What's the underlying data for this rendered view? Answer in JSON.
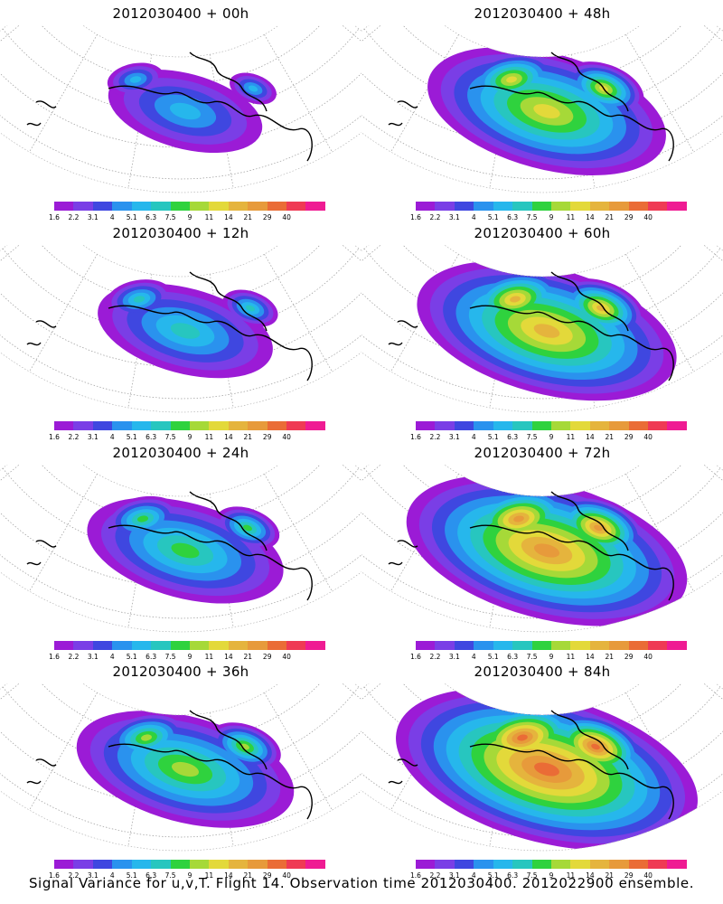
{
  "colorbar": {
    "labels": [
      "1.6",
      "2.2",
      "3.1",
      "4",
      "5.1",
      "6.3",
      "7.5",
      "9",
      "11",
      "14",
      "21",
      "29",
      "40"
    ],
    "colors": [
      "#9b1bd6",
      "#7a3ee6",
      "#3f47e0",
      "#2a92ee",
      "#26b7ec",
      "#27c6bf",
      "#2fd23e",
      "#a6d938",
      "#e3d93a",
      "#e5b43d",
      "#e79a3b",
      "#ea6c36",
      "#ef3a54",
      "#ef1b93"
    ]
  },
  "panels": [
    {
      "title": "2012030400 + 00h",
      "level": 0
    },
    {
      "title": "2012030400 + 48h",
      "level": 4
    },
    {
      "title": "2012030400 + 12h",
      "level": 1
    },
    {
      "title": "2012030400 + 60h",
      "level": 5
    },
    {
      "title": "2012030400 + 24h",
      "level": 2
    },
    {
      "title": "2012030400 + 72h",
      "level": 6
    },
    {
      "title": "2012030400 + 36h",
      "level": 3
    },
    {
      "title": "2012030400 + 84h",
      "level": 7
    }
  ],
  "footer": "Signal Variance for u,v,T. Flight 14. Observation time 2012030400. 2012022900 ensemble."
}
